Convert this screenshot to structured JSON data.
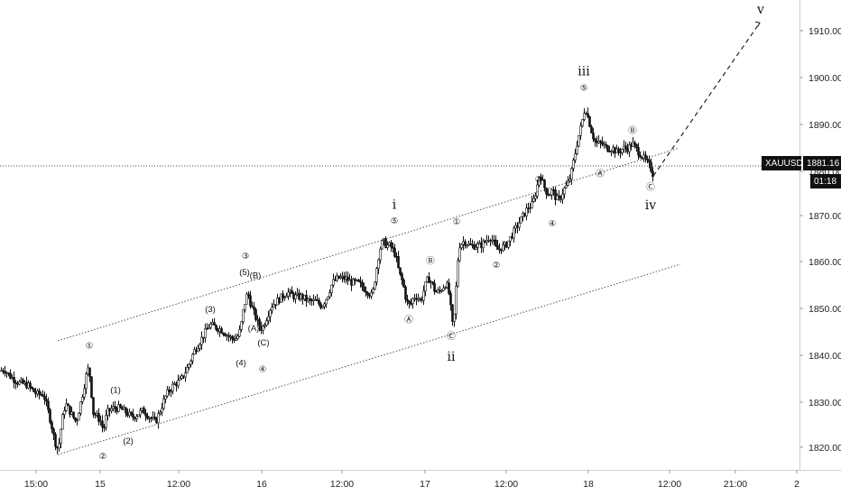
{
  "chart_data": {
    "type": "candlestick",
    "symbol": "XAUUSD",
    "last_price": "1881.16",
    "countdown": "01:18",
    "y_axis": {
      "ticks": [
        "1910.00",
        "1900.00",
        "1890.00",
        "1880.00",
        "1870.00",
        "1860.00",
        "1850.00",
        "1840.00",
        "1830.00",
        "1820.00"
      ],
      "ylim": [
        1814.5,
        1916
      ]
    },
    "x_axis": {
      "ticks": [
        "15:00",
        "15",
        "12:00",
        "16",
        "12:00",
        "17",
        "12:00",
        "18",
        "12:00",
        "21:00",
        "2"
      ]
    },
    "price_path": [
      [
        0,
        1837
      ],
      [
        4,
        1837.5
      ],
      [
        10,
        1836
      ],
      [
        20,
        1834.5
      ],
      [
        30,
        1834
      ],
      [
        40,
        1832
      ],
      [
        48,
        1832
      ],
      [
        52,
        1829
      ],
      [
        56,
        1826
      ],
      [
        60,
        1822
      ],
      [
        64,
        1820
      ],
      [
        68,
        1826
      ],
      [
        72,
        1830
      ],
      [
        78,
        1828
      ],
      [
        84,
        1826
      ],
      [
        90,
        1831
      ],
      [
        95,
        1836
      ],
      [
        98,
        1838
      ],
      [
        100,
        1834
      ],
      [
        103,
        1828
      ],
      [
        108,
        1827
      ],
      [
        112,
        1826
      ],
      [
        114,
        1824
      ],
      [
        118,
        1828
      ],
      [
        124,
        1829
      ],
      [
        132,
        1829
      ],
      [
        140,
        1828
      ],
      [
        146,
        1827
      ],
      [
        150,
        1827.5
      ],
      [
        158,
        1828.5
      ],
      [
        166,
        1827
      ],
      [
        172,
        1826
      ],
      [
        178,
        1829
      ],
      [
        184,
        1832
      ],
      [
        192,
        1834
      ],
      [
        200,
        1835
      ],
      [
        208,
        1838
      ],
      [
        214,
        1841
      ],
      [
        220,
        1843
      ],
      [
        226,
        1845
      ],
      [
        232,
        1847
      ],
      [
        238,
        1846.5
      ],
      [
        244,
        1846
      ],
      [
        250,
        1845
      ],
      [
        256,
        1844
      ],
      [
        262,
        1844
      ],
      [
        266,
        1846
      ],
      [
        270,
        1851
      ],
      [
        274,
        1854
      ],
      [
        278,
        1851
      ],
      [
        282,
        1849
      ],
      [
        286,
        1847
      ],
      [
        290,
        1846
      ],
      [
        294,
        1848
      ],
      [
        300,
        1851
      ],
      [
        306,
        1852
      ],
      [
        312,
        1853
      ],
      [
        318,
        1854
      ],
      [
        326,
        1853
      ],
      [
        334,
        1853
      ],
      [
        342,
        1852
      ],
      [
        350,
        1852
      ],
      [
        356,
        1851
      ],
      [
        362,
        1853
      ],
      [
        368,
        1856
      ],
      [
        374,
        1857
      ],
      [
        382,
        1857
      ],
      [
        390,
        1856
      ],
      [
        396,
        1856
      ],
      [
        402,
        1855
      ],
      [
        408,
        1854
      ],
      [
        412,
        1853
      ],
      [
        416,
        1858
      ],
      [
        420,
        1863
      ],
      [
        424,
        1865
      ],
      [
        428,
        1864
      ],
      [
        432,
        1864
      ],
      [
        438,
        1862
      ],
      [
        442,
        1858
      ],
      [
        446,
        1856
      ],
      [
        450,
        1852
      ],
      [
        454,
        1851
      ],
      [
        458,
        1853
      ],
      [
        462,
        1853
      ],
      [
        466,
        1852
      ],
      [
        470,
        1855
      ],
      [
        474,
        1857
      ],
      [
        478,
        1856
      ],
      [
        482,
        1854
      ],
      [
        486,
        1854
      ],
      [
        490,
        1855
      ],
      [
        494,
        1856
      ],
      [
        498,
        1853
      ],
      [
        500,
        1848
      ],
      [
        502,
        1846
      ],
      [
        504,
        1852
      ],
      [
        506,
        1858
      ],
      [
        508,
        1864
      ],
      [
        514,
        1865
      ],
      [
        520,
        1864
      ],
      [
        526,
        1864
      ],
      [
        532,
        1864
      ],
      [
        538,
        1865
      ],
      [
        542,
        1866
      ],
      [
        546,
        1865
      ],
      [
        550,
        1863
      ],
      [
        554,
        1863.5
      ],
      [
        560,
        1864
      ],
      [
        566,
        1866
      ],
      [
        572,
        1868
      ],
      [
        578,
        1870
      ],
      [
        584,
        1872
      ],
      [
        590,
        1873
      ],
      [
        594,
        1876
      ],
      [
        598,
        1880
      ],
      [
        600,
        1878
      ],
      [
        604,
        1876
      ],
      [
        608,
        1875
      ],
      [
        612,
        1876
      ],
      [
        616,
        1874
      ],
      [
        620,
        1874
      ],
      [
        624,
        1876
      ],
      [
        628,
        1877
      ],
      [
        632,
        1879
      ],
      [
        636,
        1883
      ],
      [
        640,
        1887
      ],
      [
        644,
        1890
      ],
      [
        648,
        1894
      ],
      [
        652,
        1891
      ],
      [
        656,
        1888
      ],
      [
        660,
        1886
      ],
      [
        666,
        1886
      ],
      [
        672,
        1885
      ],
      [
        678,
        1885
      ],
      [
        684,
        1884
      ],
      [
        690,
        1885
      ],
      [
        696,
        1885
      ],
      [
        700,
        1886
      ],
      [
        704,
        1885
      ],
      [
        708,
        1884
      ],
      [
        712,
        1883
      ],
      [
        716,
        1882
      ],
      [
        720,
        1881
      ],
      [
        724,
        1879
      ]
    ],
    "channel": {
      "upper": [
        [
          64,
          1843.5
        ],
        [
          752,
          1885
        ]
      ],
      "lower": [
        [
          64,
          1819
        ],
        [
          754,
          1860
        ]
      ]
    },
    "projection": [
      [
        724,
        1879
      ],
      [
        842,
        1912
      ]
    ],
    "price_line": 1881.16,
    "wave_labels": [
      {
        "text": "①",
        "x": 99,
        "p": 1842.3,
        "size": "small"
      },
      {
        "text": "②",
        "x": 114,
        "p": 1818.5,
        "size": "small"
      },
      {
        "text": "(1)",
        "x": 128,
        "p": 1832.8,
        "size": "small"
      },
      {
        "text": "(2)",
        "x": 142,
        "p": 1821.8,
        "size": "small"
      },
      {
        "text": "(3)",
        "x": 233,
        "p": 1850.2,
        "size": "small"
      },
      {
        "text": "(4)",
        "x": 267,
        "p": 1838.6,
        "size": "small"
      },
      {
        "text": "③",
        "x": 272,
        "p": 1861.7,
        "size": "small"
      },
      {
        "text": "(5)",
        "x": 271,
        "p": 1858.2,
        "size": "small"
      },
      {
        "text": "(B)",
        "x": 283,
        "p": 1857.5,
        "size": "small"
      },
      {
        "text": "(A)",
        "x": 281,
        "p": 1846.1,
        "size": "small"
      },
      {
        "text": "(C)",
        "x": 292,
        "p": 1843.0,
        "size": "small"
      },
      {
        "text": "④",
        "x": 291,
        "p": 1837.3,
        "size": "small"
      },
      {
        "text": "i",
        "x": 437,
        "p": 1872.7,
        "size": "big"
      },
      {
        "text": "⑤",
        "x": 437,
        "p": 1869.2,
        "size": "small"
      },
      {
        "text": "Ⓑ",
        "x": 477,
        "p": 1860.6,
        "size": "small"
      },
      {
        "text": "Ⓐ",
        "x": 453,
        "p": 1848.0,
        "size": "small"
      },
      {
        "text": "①",
        "x": 506,
        "p": 1869.0,
        "size": "small"
      },
      {
        "text": "Ⓒ",
        "x": 500,
        "p": 1844.4,
        "size": "small"
      },
      {
        "text": "ii",
        "x": 500,
        "p": 1840.0,
        "size": "big"
      },
      {
        "text": "②",
        "x": 550,
        "p": 1859.7,
        "size": "small"
      },
      {
        "text": "③",
        "x": 597,
        "p": 1878.2,
        "size": "small"
      },
      {
        "text": "④",
        "x": 612,
        "p": 1868.6,
        "size": "small"
      },
      {
        "text": "iii",
        "x": 647,
        "p": 1901.5,
        "size": "big"
      },
      {
        "text": "⑤",
        "x": 647,
        "p": 1897.9,
        "size": "small"
      },
      {
        "text": "Ⓐ",
        "x": 665,
        "p": 1879.4,
        "size": "small"
      },
      {
        "text": "Ⓑ",
        "x": 701,
        "p": 1888.6,
        "size": "small"
      },
      {
        "text": "Ⓒ",
        "x": 721,
        "p": 1876.5,
        "size": "small"
      },
      {
        "text": "iv",
        "x": 721,
        "p": 1872.6,
        "size": "big"
      },
      {
        "text": "v",
        "x": 843,
        "p": 1914.8,
        "size": "big"
      }
    ]
  }
}
